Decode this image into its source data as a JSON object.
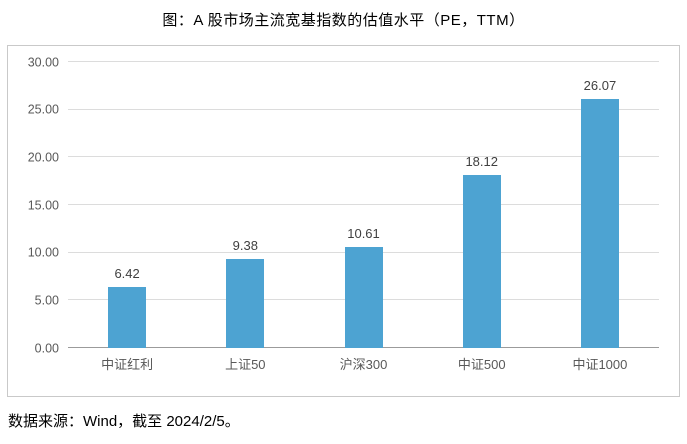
{
  "chart_data": {
    "type": "bar",
    "title": "图：A 股市场主流宽基指数的估值水平（PE，TTM）",
    "categories": [
      "中证红利",
      "上证50",
      "沪深300",
      "中证500",
      "中证1000"
    ],
    "values": [
      6.42,
      9.38,
      10.61,
      18.12,
      26.07
    ],
    "value_labels": [
      "6.42",
      "9.38",
      "10.61",
      "18.12",
      "26.07"
    ],
    "ylim": [
      0,
      30
    ],
    "ytick_step": 5,
    "ytick_labels": [
      "0.00",
      "5.00",
      "10.00",
      "15.00",
      "20.00",
      "25.00",
      "30.00"
    ],
    "grid": true,
    "legend": false,
    "bar_color": "#4da3d2",
    "gridline_color": "#dcdcdc",
    "axis_line_color": "#9b9b9b",
    "xlabel": "",
    "ylabel": ""
  },
  "footer": {
    "source": "数据来源：Wind，截至 2024/2/5。"
  }
}
